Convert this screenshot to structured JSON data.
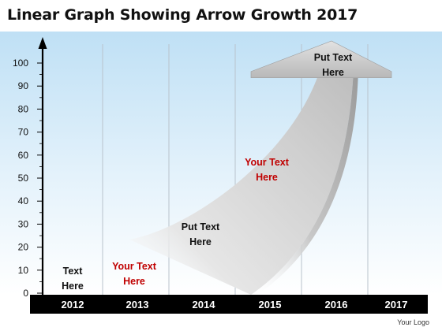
{
  "title": "Linear Graph Showing Arrow Growth 2017",
  "logo_text": "Your Logo",
  "colors": {
    "accent_red": "#c00000",
    "text_dark": "#111111",
    "axis_bar": "#000000",
    "background_top": "#bfe0f5",
    "arrow_light": "#f2f2f2",
    "arrow_dark": "#a6a6a6"
  },
  "chart_data": {
    "type": "line",
    "x": [
      "2012",
      "2013",
      "2014",
      "2015",
      "2016",
      "2017"
    ],
    "ylim": [
      0,
      100
    ],
    "yticks": [
      0,
      10,
      20,
      30,
      40,
      50,
      60,
      70,
      80,
      90,
      100
    ],
    "grid": "vertical",
    "series": [
      {
        "values": [
          null,
          10,
          25,
          50,
          97,
          null
        ]
      }
    ],
    "annotations": [
      {
        "x": "2012",
        "text": [
          "Text",
          "Here"
        ],
        "color": "#111111"
      },
      {
        "x": "2013",
        "text": [
          "Your Text",
          "Here"
        ],
        "color": "#c00000"
      },
      {
        "x": "2014",
        "text": [
          "Put Text",
          "Here"
        ],
        "color": "#111111"
      },
      {
        "x": "2015",
        "text": [
          "Your Text",
          "Here"
        ],
        "color": "#c00000"
      },
      {
        "x": "2016",
        "text": [
          "Put Text",
          "Here"
        ],
        "color": "#111111"
      }
    ]
  }
}
